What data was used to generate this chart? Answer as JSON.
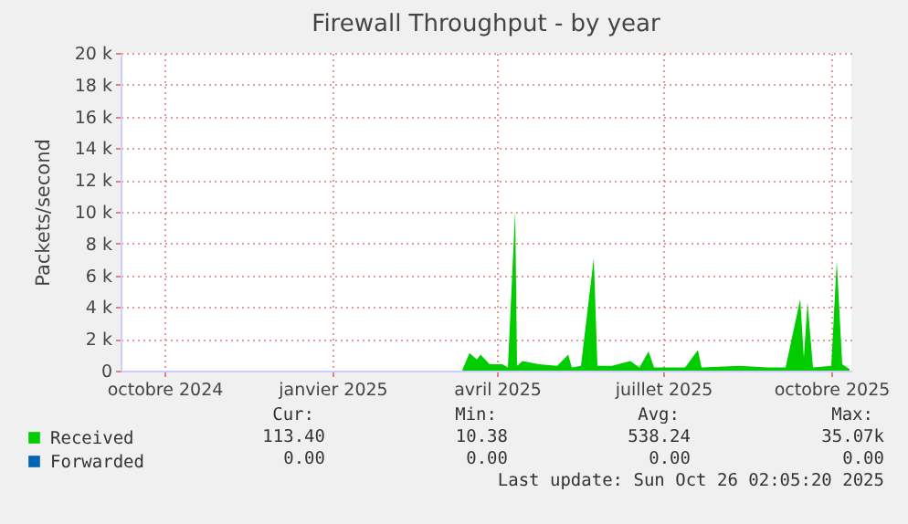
{
  "chart_data": {
    "type": "area",
    "title": "Firewall Throughput - by year",
    "ylabel": "Packets/second",
    "x": [
      "2025-03-28",
      "2025-03-29",
      "2025-04-01",
      "2025-04-05",
      "2025-04-07",
      "2025-04-12",
      "2025-04-19",
      "2025-04-22",
      "2025-04-26",
      "2025-04-27",
      "2025-04-30",
      "2025-05-09",
      "2025-05-19",
      "2025-05-25",
      "2025-05-27",
      "2025-06-01",
      "2025-06-08",
      "2025-06-10",
      "2025-06-18",
      "2025-06-28",
      "2025-07-03",
      "2025-07-08",
      "2025-07-11",
      "2025-07-28",
      "2025-08-04",
      "2025-08-06",
      "2025-08-27",
      "2025-09-11",
      "2025-09-21",
      "2025-09-29",
      "2025-10-01",
      "2025-10-03",
      "2025-10-06",
      "2025-10-16",
      "2025-10-19",
      "2025-10-22",
      "2025-10-26"
    ],
    "series": [
      {
        "name": "Received",
        "color": "#00cc00",
        "values": [
          0,
          300,
          1100,
          700,
          1000,
          400,
          400,
          200,
          10100,
          300,
          600,
          400,
          300,
          1000,
          200,
          300,
          7100,
          300,
          300,
          600,
          200,
          1200,
          200,
          200,
          1300,
          200,
          300,
          200,
          200,
          4500,
          800,
          4300,
          200,
          300,
          6900,
          400,
          100
        ]
      },
      {
        "name": "Forwarded",
        "color": "#0066b3",
        "values": [
          null,
          null,
          null,
          null,
          null,
          null,
          null,
          null,
          null,
          null,
          null,
          null,
          null,
          null,
          null,
          null,
          null,
          null,
          null,
          null,
          null,
          null,
          null,
          null,
          null,
          null,
          null,
          null,
          null,
          null,
          null,
          null,
          null,
          null,
          null,
          null,
          null
        ]
      }
    ],
    "xlim": [
      "2024-09-22",
      "2025-10-27"
    ],
    "xticks": [
      {
        "value": "2024-10-16",
        "label": "octobre 2024"
      },
      {
        "value": "2025-01-16",
        "label": "janvier 2025"
      },
      {
        "value": "2025-04-16",
        "label": "avril 2025"
      },
      {
        "value": "2025-07-16",
        "label": "juillet 2025"
      },
      {
        "value": "2025-10-16",
        "label": "octobre 2025"
      }
    ],
    "ylim": [
      0,
      20000
    ],
    "yticks": [
      {
        "value": 0,
        "label": "0"
      },
      {
        "value": 2000,
        "label": "2 k"
      },
      {
        "value": 4000,
        "label": "4 k"
      },
      {
        "value": 6000,
        "label": "6 k"
      },
      {
        "value": 8000,
        "label": "8 k"
      },
      {
        "value": 10000,
        "label": "10 k"
      },
      {
        "value": 12000,
        "label": "12 k"
      },
      {
        "value": 14000,
        "label": "14 k"
      },
      {
        "value": 16000,
        "label": "16 k"
      },
      {
        "value": 18000,
        "label": "18 k"
      },
      {
        "value": 20000,
        "label": "20 k"
      }
    ],
    "grid": true,
    "legend": "bottom left",
    "annotations": [
      "Cur:",
      "Min:",
      "Avg:",
      "Max:",
      "113.40",
      "10.38",
      "538.24",
      "35.07k",
      "0.00",
      "0.00",
      "0.00",
      "0.00",
      "Last update: Sun Oct 26 02:05:20 2025"
    ]
  }
}
